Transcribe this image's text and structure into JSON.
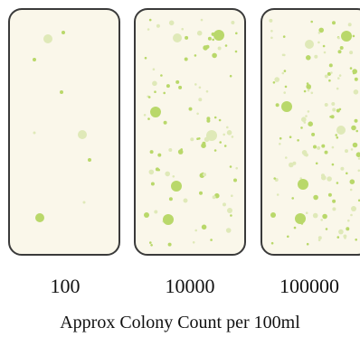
{
  "plate_fill": "#faf7ea",
  "plate_border": "#3a3a3a",
  "colony_color": "#b9d86a",
  "colony_light_color": "#dfe9b8",
  "plates": [
    {
      "count_label": "100"
    },
    {
      "count_label": "10000"
    },
    {
      "count_label": "100000"
    }
  ],
  "caption": "Approx Colony Count per 100ml"
}
